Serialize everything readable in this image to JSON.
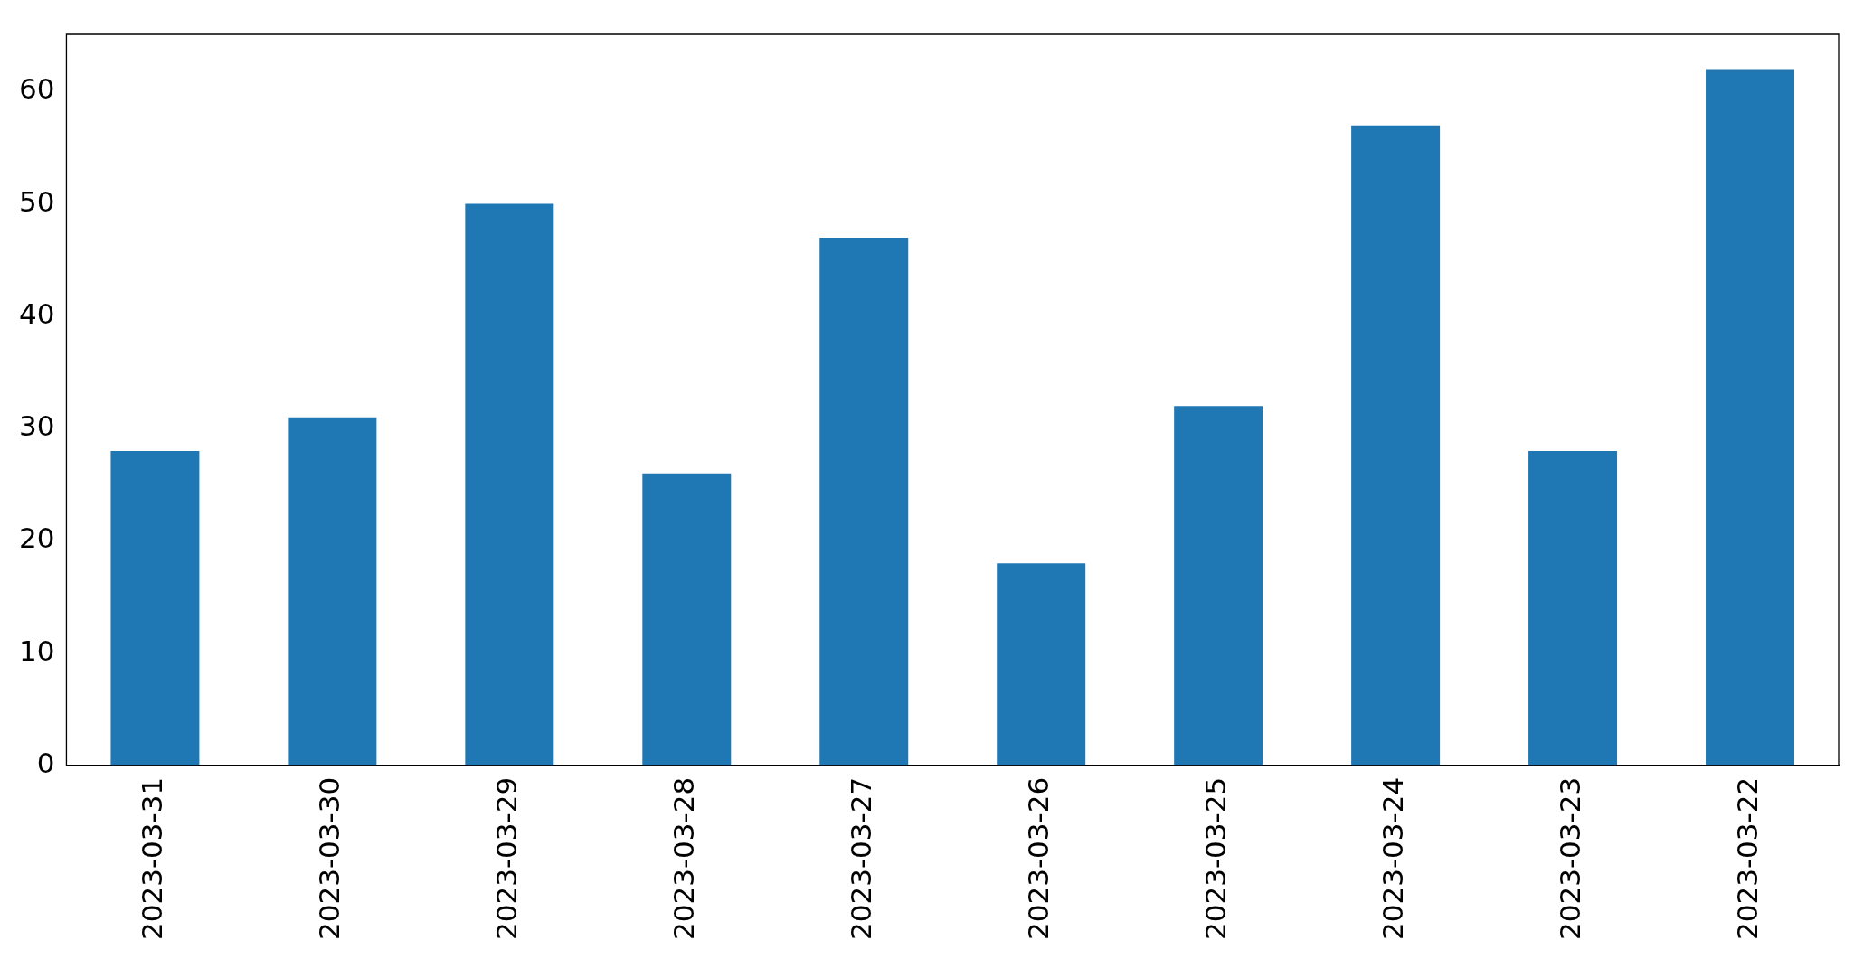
{
  "chart_data": {
    "type": "bar",
    "categories": [
      "2023-03-31",
      "2023-03-30",
      "2023-03-29",
      "2023-03-28",
      "2023-03-27",
      "2023-03-26",
      "2023-03-25",
      "2023-03-24",
      "2023-03-23",
      "2023-03-22"
    ],
    "values": [
      28,
      31,
      50,
      26,
      47,
      18,
      32,
      57,
      28,
      62
    ],
    "color": "#1f77b4",
    "ylim": [
      0,
      65.1
    ],
    "yticks": [
      0,
      10,
      20,
      30,
      40,
      50,
      60
    ],
    "grid": false,
    "legend": false
  }
}
